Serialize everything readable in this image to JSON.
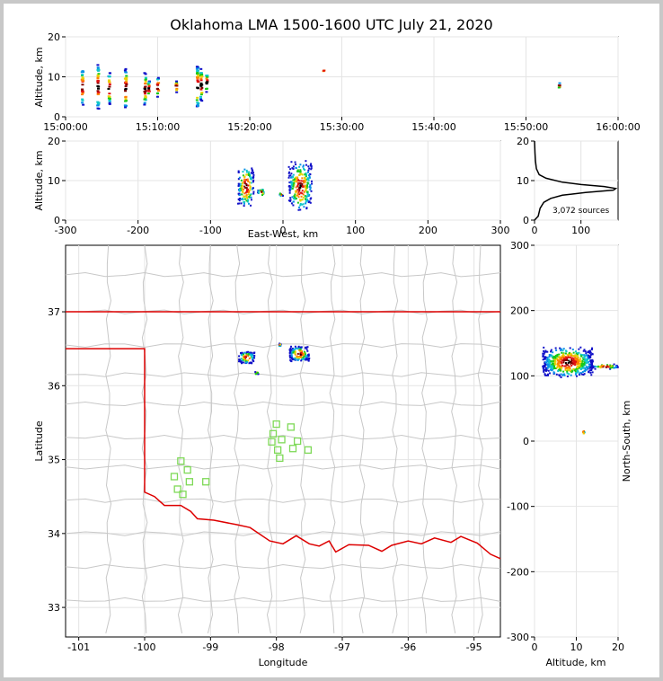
{
  "figure": {
    "title": "Oklahoma LMA 1500-1600 UTC July 21, 2020"
  },
  "colors": {
    "background": "#ffffff",
    "frame": "#c8c8c8",
    "county_lines": "#c8c8c8",
    "state_border": "#dd0000",
    "grid": "#e4e4e4",
    "stations": "#7ed957",
    "points": [
      "#1010c8",
      "#0890e8",
      "#10c8c8",
      "#18c818",
      "#e8d000",
      "#ff8000",
      "#e01010",
      "#800000",
      "#000000"
    ]
  },
  "chart_data": [
    {
      "type": "scatter",
      "name": "time-height",
      "title": "",
      "xlabel": "",
      "ylabel": "Altitude, km",
      "x_tick_labels": [
        "15:00:00",
        "15:10:00",
        "15:20:00",
        "15:30:00",
        "15:40:00",
        "15:50:00",
        "16:00:00"
      ],
      "xlim_minutes": [
        0,
        60
      ],
      "ylim": [
        0,
        20
      ],
      "y_ticks": [
        0,
        10,
        20
      ],
      "source_columns": [
        {
          "t": 1.8,
          "zmin": 3,
          "zmax": 12
        },
        {
          "t": 3.5,
          "zmin": 2,
          "zmax": 13
        },
        {
          "t": 4.7,
          "zmin": 3,
          "zmax": 11
        },
        {
          "t": 6.5,
          "zmin": 2,
          "zmax": 12
        },
        {
          "t": 8.6,
          "zmin": 3,
          "zmax": 11
        },
        {
          "t": 9.0,
          "zmin": 5,
          "zmax": 9
        },
        {
          "t": 10.0,
          "zmin": 5,
          "zmax": 10
        },
        {
          "t": 12.0,
          "zmin": 6,
          "zmax": 9
        },
        {
          "t": 14.3,
          "zmin": 2,
          "zmax": 13
        },
        {
          "t": 14.7,
          "zmin": 4,
          "zmax": 12
        },
        {
          "t": 15.3,
          "zmin": 6,
          "zmax": 11
        },
        {
          "t": 28.0,
          "zmin": 11.3,
          "zmax": 11.7
        },
        {
          "t": 53.6,
          "zmin": 7,
          "zmax": 8.5
        }
      ]
    },
    {
      "type": "scatter",
      "name": "east-west-altitude",
      "xlabel": "East-West, km",
      "ylabel": "Altitude, km",
      "xlim": [
        -300,
        300
      ],
      "ylim": [
        0,
        20
      ],
      "x_ticks": [
        -300,
        -200,
        -100,
        0,
        100,
        200,
        300
      ],
      "y_ticks": [
        0,
        10,
        20
      ],
      "clusters": [
        {
          "xmin": -62,
          "xmax": -40,
          "zmin": 3,
          "zmax": 14
        },
        {
          "xmin": -35,
          "xmax": -25,
          "zmin": 6,
          "zmax": 8
        },
        {
          "xmin": -5,
          "xmax": 0,
          "zmin": 6,
          "zmax": 7
        },
        {
          "xmin": 8,
          "xmax": 40,
          "zmin": 2,
          "zmax": 15
        }
      ]
    },
    {
      "type": "line",
      "name": "altitude-histogram",
      "xlabel": "",
      "ylabel": "",
      "xlim": [
        0,
        180
      ],
      "ylim": [
        0,
        20
      ],
      "x_ticks": [
        0,
        100
      ],
      "y_ticks": [
        0,
        10,
        20
      ],
      "annotation": "3,072 sources",
      "counts": [
        [
          0,
          0
        ],
        [
          8,
          1
        ],
        [
          12,
          3
        ],
        [
          20,
          4.5
        ],
        [
          35,
          5.5
        ],
        [
          60,
          6.3
        ],
        [
          110,
          7.0
        ],
        [
          170,
          7.6
        ],
        [
          175,
          8.0
        ],
        [
          150,
          8.5
        ],
        [
          100,
          9.0
        ],
        [
          60,
          9.6
        ],
        [
          25,
          10.6
        ],
        [
          10,
          11.5
        ],
        [
          4,
          13
        ],
        [
          2,
          15
        ],
        [
          1,
          17
        ],
        [
          0,
          20
        ]
      ]
    },
    {
      "type": "scatter",
      "name": "plan-view",
      "xlabel": "Longitude",
      "ylabel": "Latitude",
      "xlim": [
        -101.2,
        -94.6
      ],
      "ylim": [
        32.6,
        37.9
      ],
      "x_ticks": [
        -101,
        -100,
        -99,
        -98,
        -97,
        -96,
        -95
      ],
      "y_ticks": [
        33,
        34,
        35,
        36,
        37
      ],
      "storm_clusters": [
        {
          "lon": -98.45,
          "lat": 36.38,
          "spread_lon": 0.12,
          "spread_lat": 0.08
        },
        {
          "lon": -97.65,
          "lat": 36.43,
          "spread_lon": 0.15,
          "spread_lat": 0.1
        },
        {
          "lon": -98.3,
          "lat": 36.17,
          "spread_lon": 0.03,
          "spread_lat": 0.02
        },
        {
          "lon": -97.95,
          "lat": 36.55,
          "spread_lon": 0.02,
          "spread_lat": 0.02
        }
      ],
      "stations": [
        {
          "lon": -99.45,
          "lat": 34.98
        },
        {
          "lon": -99.35,
          "lat": 34.86
        },
        {
          "lon": -99.55,
          "lat": 34.77
        },
        {
          "lon": -99.32,
          "lat": 34.7
        },
        {
          "lon": -99.5,
          "lat": 34.6
        },
        {
          "lon": -99.42,
          "lat": 34.53
        },
        {
          "lon": -99.07,
          "lat": 34.7
        },
        {
          "lon": -98.0,
          "lat": 35.48
        },
        {
          "lon": -98.05,
          "lat": 35.35
        },
        {
          "lon": -98.07,
          "lat": 35.24
        },
        {
          "lon": -97.92,
          "lat": 35.27
        },
        {
          "lon": -97.98,
          "lat": 35.13
        },
        {
          "lon": -97.95,
          "lat": 35.02
        },
        {
          "lon": -97.78,
          "lat": 35.44
        },
        {
          "lon": -97.68,
          "lat": 35.25
        },
        {
          "lon": -97.75,
          "lat": 35.15
        },
        {
          "lon": -97.52,
          "lat": 35.13
        }
      ]
    },
    {
      "type": "scatter",
      "name": "altitude-north-south",
      "xlabel": "Altitude, km",
      "ylabel": "North-South, km",
      "xlim": [
        0,
        20
      ],
      "ylim": [
        -300,
        300
      ],
      "x_ticks": [
        0,
        10,
        20
      ],
      "y_ticks": [
        -300,
        -200,
        -100,
        0,
        100,
        200,
        300
      ],
      "clusters": [
        {
          "zmin": 2,
          "zmax": 14,
          "ymin": 97,
          "ymax": 145
        },
        {
          "zmin": 14,
          "zmax": 20,
          "ymin": 110,
          "ymax": 118
        },
        {
          "zmin": 11.5,
          "zmax": 12,
          "ymin": 10,
          "ymax": 18
        }
      ]
    }
  ]
}
